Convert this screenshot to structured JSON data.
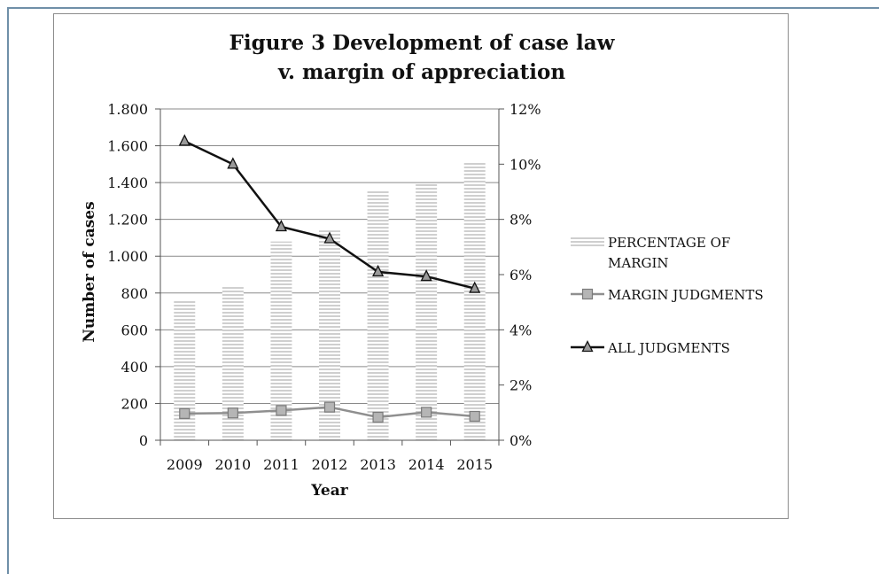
{
  "chart_data": {
    "type": "bar",
    "title_lines": [
      "Figure 3 Development of case law",
      "v. margin of appreciation"
    ],
    "xlabel": "Year",
    "ylabel": "Number of cases",
    "categories": [
      "2009",
      "2010",
      "2011",
      "2012",
      "2013",
      "2014",
      "2015"
    ],
    "y_left": {
      "lim": [
        0,
        1800
      ],
      "ticks": [
        0,
        200,
        400,
        600,
        800,
        1000,
        1200,
        1400,
        1600,
        1800
      ],
      "tick_labels": [
        "0",
        "200",
        "400",
        "600",
        "800",
        "1.000",
        "1.200",
        "1.400",
        "1.600",
        "1.800"
      ]
    },
    "y_right": {
      "lim": [
        0,
        12
      ],
      "ticks": [
        0,
        2,
        4,
        6,
        8,
        10,
        12
      ],
      "tick_labels": [
        "0%",
        "2%",
        "4%",
        "6%",
        "8%",
        "10%",
        "12%"
      ]
    },
    "series": [
      {
        "name": "PERCENTAGE OF MARGIN",
        "kind": "bar",
        "axis": "right",
        "unit": "%",
        "values": [
          5.1,
          5.55,
          7.2,
          7.6,
          9.05,
          9.3,
          10.05
        ],
        "color": "#d0d0d0"
      },
      {
        "name": "MARGIN JUDGMENTS",
        "kind": "line",
        "axis": "left",
        "marker": "square",
        "values": [
          145,
          148,
          162,
          180,
          125,
          152,
          130
        ],
        "color": "#8f8f8f"
      },
      {
        "name": "ALL JUDGMENTS",
        "kind": "line",
        "axis": "left",
        "marker": "triangle",
        "values": [
          1625,
          1500,
          1160,
          1095,
          915,
          890,
          825
        ],
        "color": "#111111"
      }
    ],
    "legend_position": "right",
    "grid": "horizontal"
  }
}
